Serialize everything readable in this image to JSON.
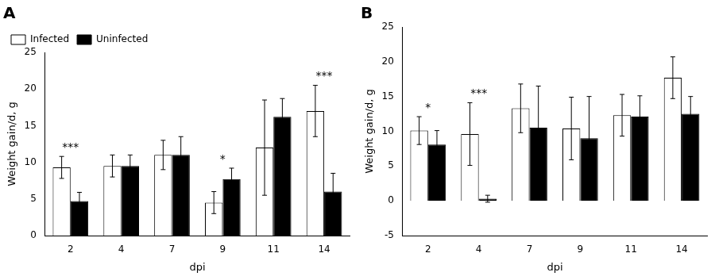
{
  "chart_data": [
    {
      "type": "bar",
      "title": "A",
      "categories": [
        2,
        4,
        7,
        9,
        11,
        14
      ],
      "series": [
        {
          "name": "Infected",
          "color": "#ffffff",
          "values": [
            9.3,
            9.5,
            11.0,
            4.5,
            12.0,
            17.0
          ],
          "errors": [
            1.5,
            1.5,
            2.0,
            1.5,
            6.5,
            3.5
          ]
        },
        {
          "name": "Uninfected",
          "color": "#000000",
          "values": [
            4.7,
            9.5,
            11.0,
            7.7,
            16.2,
            6.0
          ],
          "errors": [
            1.2,
            1.5,
            2.5,
            1.5,
            2.5,
            2.5
          ]
        }
      ],
      "annotations": [
        {
          "category": 2,
          "text": "***"
        },
        {
          "category": 9,
          "text": "*"
        },
        {
          "category": 14,
          "text": "***"
        }
      ],
      "xlabel": "dpi",
      "ylabel": "Weight gain/d, g",
      "ylim": [
        0,
        25
      ],
      "yticks": [
        0,
        5,
        10,
        15,
        20,
        25
      ],
      "grid": false,
      "legend": "upper left"
    },
    {
      "type": "bar",
      "title": "B",
      "categories": [
        2,
        4,
        7,
        9,
        11,
        14
      ],
      "series": [
        {
          "name": "Infected",
          "color": "#ffffff",
          "values": [
            10.1,
            9.6,
            13.3,
            10.4,
            12.3,
            17.7
          ],
          "errors": [
            2.0,
            4.5,
            3.5,
            4.5,
            3.0,
            3.0
          ]
        },
        {
          "name": "Uninfected",
          "color": "#000000",
          "values": [
            8.1,
            0.3,
            10.5,
            9.0,
            12.1,
            12.5
          ],
          "errors": [
            2.0,
            0.5,
            6.0,
            6.0,
            3.0,
            2.5
          ]
        }
      ],
      "annotations": [
        {
          "category": 2,
          "text": "*"
        },
        {
          "category": 4,
          "text": "***"
        }
      ],
      "xlabel": "dpi",
      "ylabel": "Weight gain/d, g",
      "ylim": [
        -5,
        25
      ],
      "yticks": [
        -5,
        0,
        5,
        10,
        15,
        20,
        25
      ],
      "grid": false
    }
  ]
}
